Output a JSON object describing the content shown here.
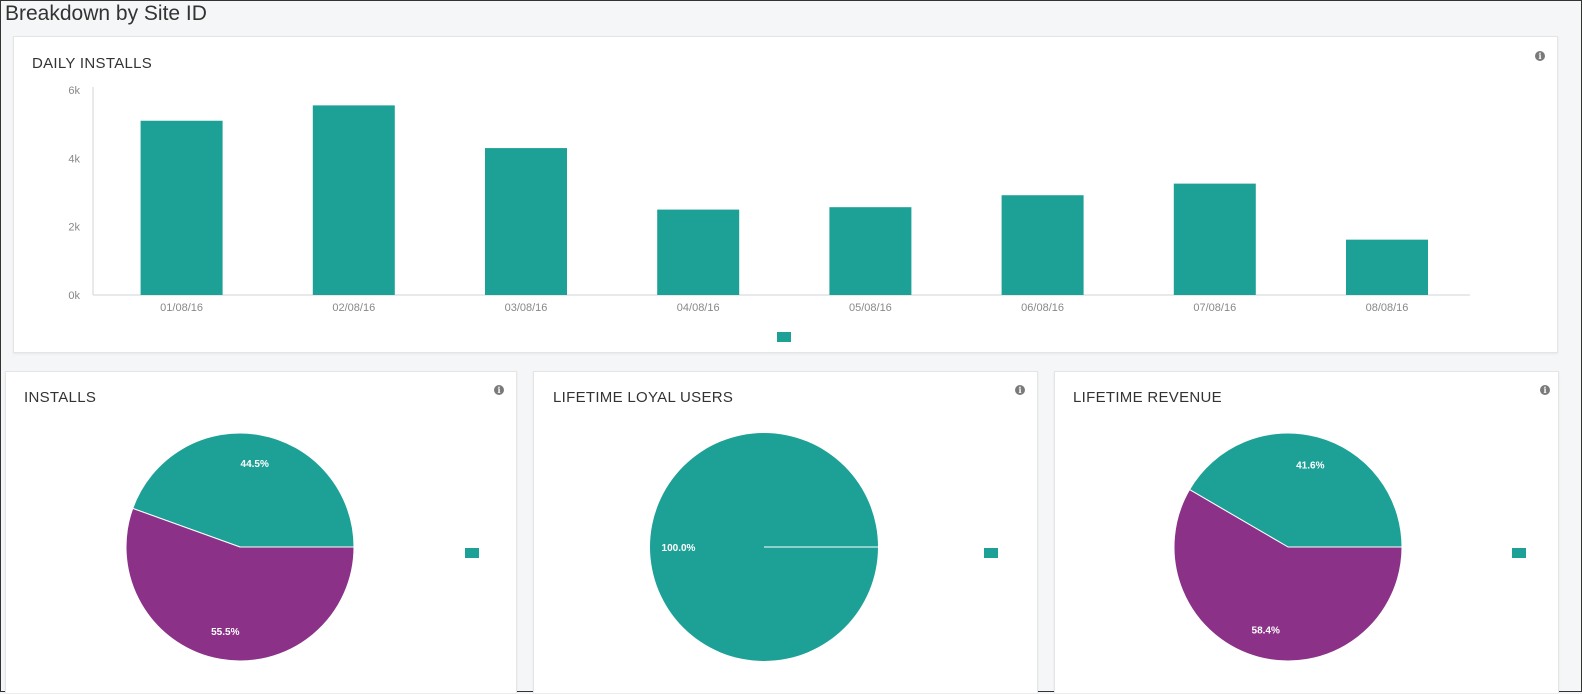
{
  "page": {
    "title": "Breakdown by Site ID"
  },
  "colors": {
    "teal": "#1da197",
    "purple": "#8b3288",
    "axis": "#d0d3d6",
    "tick_text": "#888888"
  },
  "icons": {
    "info": "info-icon"
  },
  "daily_installs": {
    "title": "DAILY INSTALLS",
    "info_glyph": "i"
  },
  "installs": {
    "title": "INSTALLS",
    "info_glyph": "i"
  },
  "loyal_users": {
    "title": "LIFETIME LOYAL USERS",
    "info_glyph": "i"
  },
  "revenue": {
    "title": "LIFETIME REVENUE",
    "info_glyph": "i"
  },
  "chart_data": [
    {
      "type": "bar",
      "title": "DAILY INSTALLS",
      "categories": [
        "01/08/16",
        "02/08/16",
        "03/08/16",
        "04/08/16",
        "05/08/16",
        "06/08/16",
        "07/08/16",
        "08/08/16"
      ],
      "values": [
        5100,
        5550,
        4300,
        2500,
        2570,
        2920,
        3260,
        1620
      ],
      "ylim": [
        0,
        6000
      ],
      "yticks": [
        "0k",
        "2k",
        "4k",
        "6k"
      ],
      "ytick_values": [
        0,
        2000,
        4000,
        6000
      ],
      "legend": "bottom-center",
      "grid": false
    },
    {
      "type": "pie",
      "title": "INSTALLS",
      "slices": [
        {
          "label": "44.5%",
          "value": 44.5,
          "color": "#1da197"
        },
        {
          "label": "55.5%",
          "value": 55.5,
          "color": "#8b3288"
        }
      ],
      "legend": "right"
    },
    {
      "type": "pie",
      "title": "LIFETIME LOYAL USERS",
      "slices": [
        {
          "label": "100.0%",
          "value": 100.0,
          "color": "#1da197"
        }
      ],
      "legend": "right"
    },
    {
      "type": "pie",
      "title": "LIFETIME REVENUE",
      "slices": [
        {
          "label": "41.6%",
          "value": 41.6,
          "color": "#1da197"
        },
        {
          "label": "58.4%",
          "value": 58.4,
          "color": "#8b3288"
        }
      ],
      "legend": "right"
    }
  ]
}
